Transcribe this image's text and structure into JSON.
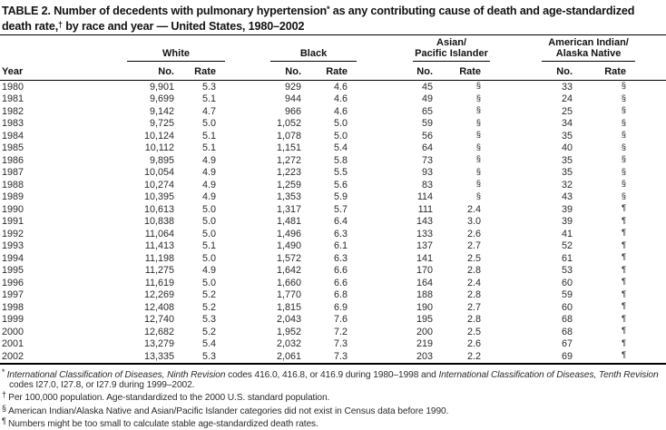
{
  "title": {
    "segments": [
      {
        "text": "TABLE 2. Number of decedents with pulmonary hypertension"
      },
      {
        "text": "*",
        "sup": true
      },
      {
        "text": " as any contributing cause of death and age-standardized death rate,"
      },
      {
        "text": "†",
        "sup": true
      },
      {
        "text": " by race and year — United States, 1980–2002"
      }
    ]
  },
  "table": {
    "year_header": "Year",
    "groups": [
      {
        "label": "White"
      },
      {
        "label": "Black"
      },
      {
        "label": "Asian/\nPacific Islander"
      },
      {
        "label": "American Indian/\nAlaska Native"
      }
    ],
    "subheaders": {
      "no": "No.",
      "rate": "Rate"
    },
    "columns_per_group": [
      "No.",
      "Rate"
    ],
    "rows": [
      [
        "1980",
        "9,901",
        "5.3",
        "929",
        "4.6",
        "45",
        "§",
        "33",
        "§"
      ],
      [
        "1981",
        "9,699",
        "5.1",
        "944",
        "4.6",
        "49",
        "§",
        "24",
        "§"
      ],
      [
        "1982",
        "9,142",
        "4.7",
        "966",
        "4.6",
        "65",
        "§",
        "25",
        "§"
      ],
      [
        "1983",
        "9,725",
        "5.0",
        "1,052",
        "5.0",
        "59",
        "§",
        "34",
        "§"
      ],
      [
        "1984",
        "10,124",
        "5.1",
        "1,078",
        "5.0",
        "56",
        "§",
        "35",
        "§"
      ],
      [
        "1985",
        "10,112",
        "5.1",
        "1,151",
        "5.4",
        "64",
        "§",
        "40",
        "§"
      ],
      [
        "1986",
        "9,895",
        "4.9",
        "1,272",
        "5.8",
        "73",
        "§",
        "35",
        "§"
      ],
      [
        "1987",
        "10,054",
        "4.9",
        "1,223",
        "5.5",
        "93",
        "§",
        "35",
        "§"
      ],
      [
        "1988",
        "10,274",
        "4.9",
        "1,259",
        "5.6",
        "83",
        "§",
        "32",
        "§"
      ],
      [
        "1989",
        "10,395",
        "4.9",
        "1,353",
        "5.9",
        "114",
        "§",
        "43",
        "§"
      ],
      [
        "1990",
        "10,613",
        "5.0",
        "1,317",
        "5.7",
        "111",
        "2.4",
        "39",
        "¶"
      ],
      [
        "1991",
        "10,838",
        "5.0",
        "1,481",
        "6.4",
        "143",
        "3.0",
        "39",
        "¶"
      ],
      [
        "1992",
        "11,064",
        "5.0",
        "1,496",
        "6.3",
        "133",
        "2.6",
        "41",
        "¶"
      ],
      [
        "1993",
        "11,413",
        "5.1",
        "1,490",
        "6.1",
        "137",
        "2.7",
        "52",
        "¶"
      ],
      [
        "1994",
        "11,198",
        "5.0",
        "1,572",
        "6.3",
        "141",
        "2.5",
        "61",
        "¶"
      ],
      [
        "1995",
        "11,275",
        "4.9",
        "1,642",
        "6.6",
        "170",
        "2.8",
        "53",
        "¶"
      ],
      [
        "1996",
        "11,619",
        "5.0",
        "1,660",
        "6.6",
        "164",
        "2.4",
        "60",
        "¶"
      ],
      [
        "1997",
        "12,269",
        "5.2",
        "1,770",
        "6.8",
        "188",
        "2.8",
        "59",
        "¶"
      ],
      [
        "1998",
        "12,408",
        "5.2",
        "1,815",
        "6.9",
        "190",
        "2.7",
        "60",
        "¶"
      ],
      [
        "1999",
        "12,740",
        "5.3",
        "2,043",
        "7.6",
        "195",
        "2.8",
        "68",
        "¶"
      ],
      [
        "2000",
        "12,682",
        "5.2",
        "1,952",
        "7.2",
        "200",
        "2.5",
        "68",
        "¶"
      ],
      [
        "2001",
        "13,279",
        "5.4",
        "2,032",
        "7.3",
        "219",
        "2.6",
        "67",
        "¶"
      ],
      [
        "2002",
        "13,335",
        "5.3",
        "2,061",
        "7.3",
        "203",
        "2.2",
        "69",
        "¶"
      ]
    ]
  },
  "footnotes": [
    {
      "marker": "*",
      "segments": [
        {
          "text": "International Classification of Diseases, Ninth Revision",
          "italic": true
        },
        {
          "text": " codes 416.0, 416.8, or 416.9 during 1980–1998 and "
        },
        {
          "text": "International Classification of Diseases, Tenth Revision",
          "italic": true
        },
        {
          "text": " codes I27.0, I27.8, or I27.9 during 1999–2002."
        }
      ]
    },
    {
      "marker": "†",
      "segments": [
        {
          "text": "Per 100,000 population. Age-standardized to the 2000 U.S. standard population."
        }
      ]
    },
    {
      "marker": "§",
      "segments": [
        {
          "text": "American Indian/Alaska Native and Asian/Pacific Islander categories did not exist in Census data before 1990."
        }
      ]
    },
    {
      "marker": "¶",
      "segments": [
        {
          "text": "Numbers might be too small to calculate stable age-standardized death rates."
        }
      ]
    }
  ],
  "colors": {
    "text": "#2b2b2b",
    "heading": "#121212",
    "rule": "#000000",
    "background": "#ffffff"
  }
}
